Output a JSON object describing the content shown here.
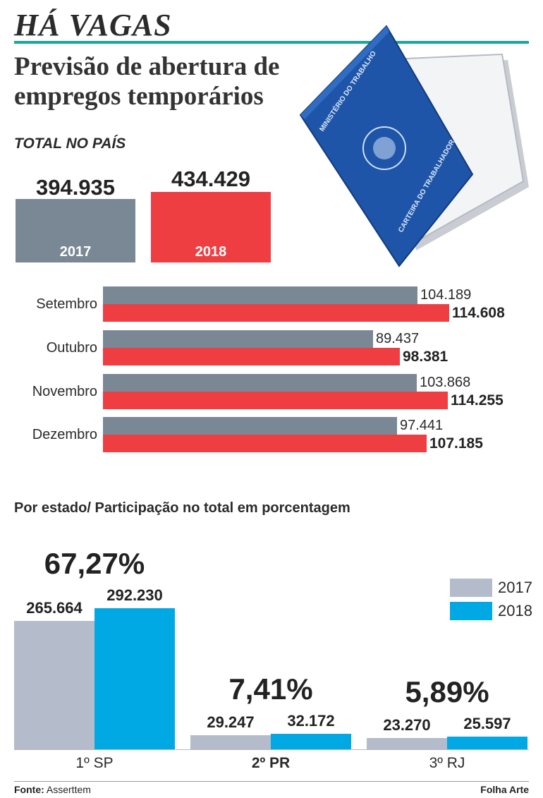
{
  "header": {
    "title": "HÁ VAGAS",
    "subtitle_line1": "Previsão de abertura de",
    "subtitle_line2": "empregos temporários"
  },
  "colors": {
    "y2017_dark": "#7a8896",
    "y2018_red": "#ee3e42",
    "y2017_light": "#b4bccb",
    "y2018_blue": "#00a9e4",
    "accent_rule": "#1aa89a"
  },
  "illustration": {
    "booklet_text_1": "MINISTÉRIO DO TRABALHO",
    "booklet_text_2": "CARTEIRA DO TRABALHADOR"
  },
  "chart_data": [
    {
      "type": "bar",
      "title": "TOTAL NO PAÍS",
      "categories": [
        "2017",
        "2018"
      ],
      "values": [
        394935,
        434429
      ],
      "value_labels": [
        "394.935",
        "434.429"
      ]
    },
    {
      "type": "bar",
      "orientation": "horizontal",
      "categories": [
        "Setembro",
        "Outubro",
        "Novembro",
        "Dezembro"
      ],
      "series": [
        {
          "values": [
            104189,
            89437,
            103868,
            97441
          ],
          "labels": [
            "104.189",
            "89.437",
            "103.868",
            "97.441"
          ]
        },
        {
          "values": [
            114608,
            98381,
            114255,
            107185
          ],
          "labels": [
            "114.608",
            "98.381",
            "114.255",
            "107.185"
          ]
        }
      ]
    },
    {
      "type": "bar",
      "title": "Por estado/ Participação no total em porcentagem",
      "categories": [
        "1º SP",
        "2º PR",
        "3º RJ"
      ],
      "shares": [
        "67,27%",
        "7,41%",
        "5,89%"
      ],
      "series": [
        {
          "name": "2017",
          "values": [
            265664,
            29247,
            23270
          ],
          "labels": [
            "265.664",
            "29.247",
            "23.270"
          ]
        },
        {
          "name": "2018",
          "values": [
            292230,
            32172,
            25597
          ],
          "labels": [
            "292.230",
            "32.172",
            "25.597"
          ]
        }
      ],
      "legend": "top-right"
    }
  ],
  "footer": {
    "source_label": "Fonte:",
    "source_value": "Asserttem",
    "credit": "Folha Arte"
  }
}
